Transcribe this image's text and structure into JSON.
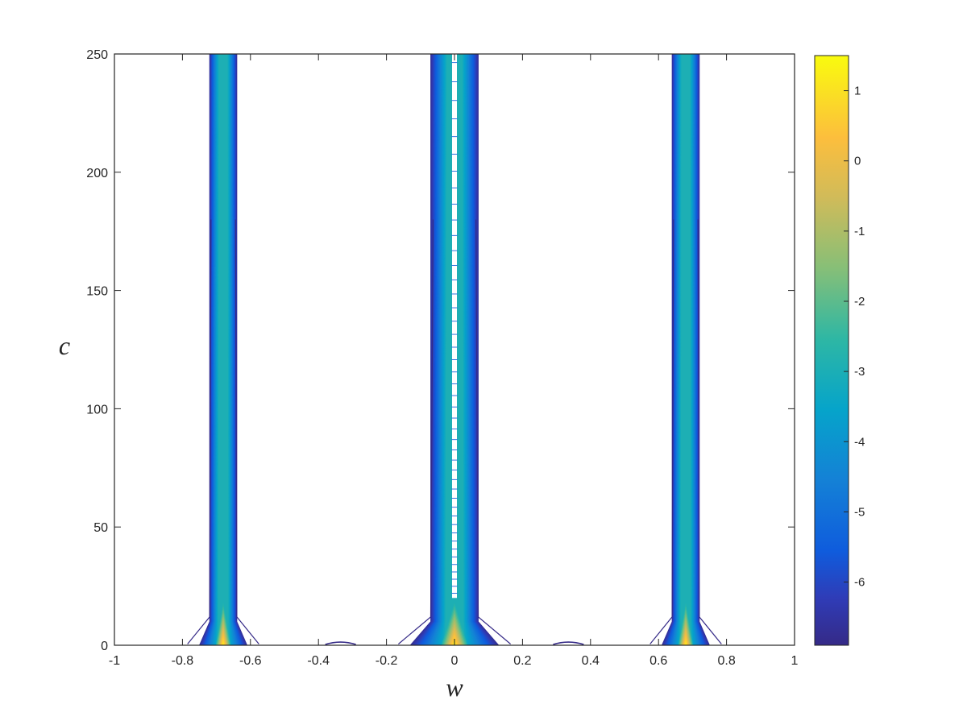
{
  "chart_data": {
    "type": "contour",
    "title": "",
    "xlabel": "w",
    "ylabel": "c",
    "xlim": [
      -1,
      1
    ],
    "ylim": [
      0,
      250
    ],
    "xticks": [
      -1,
      -0.8,
      -0.6,
      -0.4,
      -0.2,
      0,
      0.2,
      0.4,
      0.6,
      0.8,
      1
    ],
    "xtick_labels": [
      "-1",
      "-0.8",
      "-0.6",
      "-0.4",
      "-0.2",
      "0",
      "0.2",
      "0.4",
      "0.6",
      "0.8",
      "1"
    ],
    "yticks": [
      0,
      50,
      100,
      150,
      200,
      250
    ],
    "ytick_labels": [
      "0",
      "50",
      "100",
      "150",
      "200",
      "250"
    ],
    "colormap": "parula",
    "colorbar": {
      "range": [
        -6.9,
        1.5
      ],
      "ticks": [
        1,
        0,
        -1,
        -2,
        -3,
        -4,
        -5,
        -6
      ],
      "tick_labels": [
        "1",
        "0",
        "-1",
        "-2",
        "-3",
        "-4",
        "-5",
        "-6"
      ]
    },
    "bands": [
      {
        "center": -0.68,
        "half_width_top": 0.04,
        "half_width_base": 0.07,
        "foot": 0.035
      },
      {
        "center": 0,
        "half_width_top": 0.07,
        "half_width_base": 0.13,
        "foot": 0.035,
        "white_core": true
      },
      {
        "center": 0.68,
        "half_width_top": 0.04,
        "half_width_base": 0.07,
        "foot": 0.035
      }
    ],
    "small_contours": [
      {
        "x": [
          -0.38,
          -0.29
        ],
        "y": 1
      },
      {
        "x": [
          0.29,
          0.38
        ],
        "y": 1
      }
    ]
  }
}
